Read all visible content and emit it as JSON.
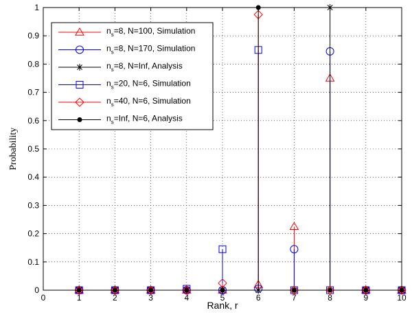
{
  "chart_data": {
    "type": "stem",
    "title": "",
    "xlabel": "Rank, r",
    "ylabel": "Probability",
    "xlim": [
      0,
      10
    ],
    "ylim": [
      0,
      1
    ],
    "grid": true,
    "legend_position": "top-left",
    "x_ticks": [
      "0",
      "1",
      "2",
      "3",
      "4",
      "5",
      "6",
      "7",
      "8",
      "9",
      "10"
    ],
    "y_ticks": [
      "0",
      "0.1",
      "0.2",
      "0.3",
      "0.4",
      "0.5",
      "0.6",
      "0.7",
      "0.8",
      "0.9",
      "1"
    ],
    "series": [
      {
        "name_main": "n",
        "name_sub": "s",
        "name_rest": "=8, N=100, Simulation",
        "color": "#ff0000",
        "marker": "triangle",
        "x": [
          1,
          2,
          3,
          4,
          5,
          6,
          7,
          8,
          9,
          10
        ],
        "y": [
          0,
          0,
          0,
          0,
          0,
          0.02,
          0.225,
          0.75,
          0,
          0
        ]
      },
      {
        "name_main": "n",
        "name_sub": "s",
        "name_rest": "=8, N=170, Simulation",
        "color": "#0000ff",
        "marker": "circle",
        "x": [
          1,
          2,
          3,
          4,
          5,
          6,
          7,
          8,
          9,
          10
        ],
        "y": [
          0,
          0,
          0,
          0,
          0,
          0.005,
          0.145,
          0.845,
          0,
          0
        ]
      },
      {
        "name_main": "n",
        "name_sub": "s",
        "name_rest": "=8, N=Inf, Analysis",
        "color": "#000000",
        "marker": "asterisk",
        "x": [
          1,
          2,
          3,
          4,
          5,
          6,
          7,
          8,
          9,
          10
        ],
        "y": [
          0,
          0,
          0,
          0,
          0,
          0,
          0,
          1,
          0,
          0
        ]
      },
      {
        "name_main": "n",
        "name_sub": "s",
        "name_rest": "=20, N=6, Simulation",
        "color": "#0000ff",
        "marker": "square",
        "x": [
          1,
          2,
          3,
          4,
          5,
          6,
          7,
          8,
          9,
          10
        ],
        "y": [
          0,
          0,
          0,
          0.005,
          0.145,
          0.85,
          0,
          0,
          0,
          0
        ]
      },
      {
        "name_main": "n",
        "name_sub": "s",
        "name_rest": "=40, N=6, Simulation",
        "color": "#ff0000",
        "marker": "diamond",
        "x": [
          1,
          2,
          3,
          4,
          5,
          6,
          7,
          8,
          9,
          10
        ],
        "y": [
          0,
          0,
          0,
          0,
          0.025,
          0.975,
          0,
          0,
          0,
          0
        ]
      },
      {
        "name_main": "n",
        "name_sub": "s",
        "name_rest": "=Inf, N=6, Analysis",
        "color": "#000000",
        "marker": "dot",
        "x": [
          1,
          2,
          3,
          4,
          5,
          6,
          7,
          8,
          9,
          10
        ],
        "y": [
          0,
          0,
          0,
          0,
          0,
          1,
          0,
          0,
          0,
          0
        ]
      }
    ]
  }
}
